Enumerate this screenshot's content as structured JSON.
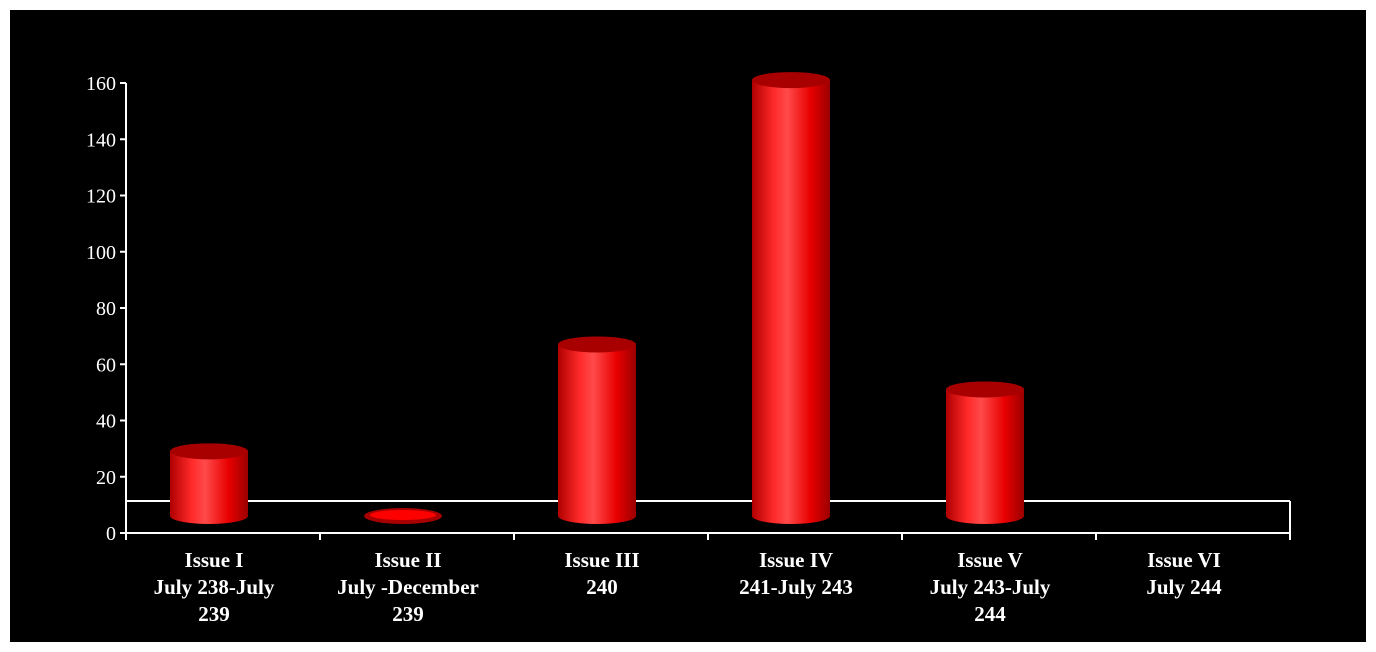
{
  "chart_data": {
    "type": "bar",
    "title": "",
    "xlabel": "",
    "ylabel": "",
    "ylim": [
      0,
      160
    ],
    "yticks": [
      0,
      20,
      40,
      60,
      80,
      100,
      120,
      140,
      160
    ],
    "grid": false,
    "legend": "none",
    "categories": [
      [
        "Issue I",
        "July 238-July",
        "239"
      ],
      [
        "Issue II",
        "July -December",
        "239"
      ],
      [
        "Issue III",
        "240"
      ],
      [
        "Issue IV",
        "241-July 243"
      ],
      [
        "Issue V",
        "July 243-July",
        "244"
      ],
      [
        "Issue VI",
        "July 244"
      ]
    ],
    "values": [
      23,
      2,
      61,
      155,
      45,
      0
    ],
    "colors": {
      "background": "#000000",
      "bar": "#ff0000",
      "bar_dark": "#a80000",
      "axis": "#ffffff"
    }
  }
}
